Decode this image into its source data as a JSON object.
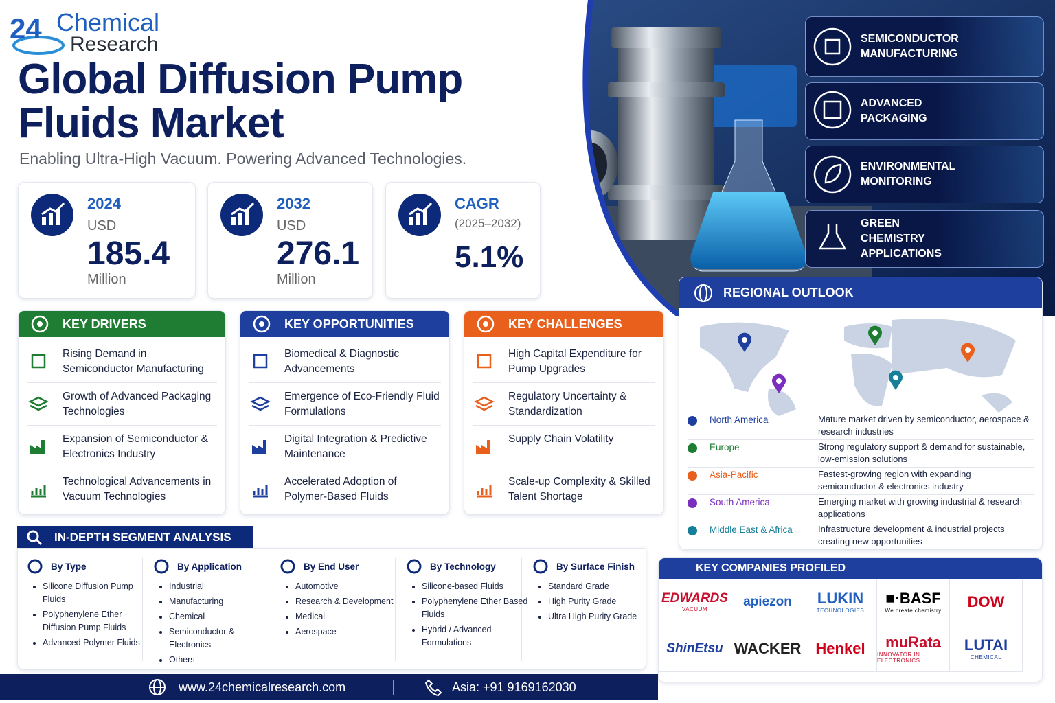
{
  "logo": {
    "number": "24",
    "name": "Chemical",
    "sub": "Research"
  },
  "header": {
    "title_line1": "Global Diffusion Pump",
    "title_line2": "Fluids Market",
    "subtitle": "Enabling Ultra-High Vacuum. Powering Advanced Technologies."
  },
  "stats": [
    {
      "label": 2024,
      "unit": "USD",
      "value": 185.4,
      "suffix": "Million"
    },
    {
      "label": 2032,
      "unit": "USD",
      "value": 276.1,
      "suffix": "Million"
    },
    {
      "label": "CAGR",
      "unit": "(2025–2032)",
      "value": "5.1%"
    }
  ],
  "applications": [
    "SEMICONDUCTOR MANUFACTURING",
    "ADVANCED PACKAGING",
    "ENVIRONMENTAL MONITORING",
    "GREEN CHEMISTRY APPLICATIONS"
  ],
  "key_drivers": {
    "title": "KEY DRIVERS",
    "items": [
      "Rising Demand in Semiconductor Manufacturing",
      "Growth of Advanced Packaging Technologies",
      "Expansion of Semiconductor & Electronics Industry",
      "Technological Advancements in Vacuum Technologies"
    ]
  },
  "key_opportunities": {
    "title": "KEY OPPORTUNITIES",
    "items": [
      "Biomedical & Diagnostic Advancements",
      "Emergence of Eco-Friendly Fluid Formulations",
      "Digital Integration & Predictive Maintenance",
      "Accelerated Adoption of Polymer-Based Fluids"
    ]
  },
  "key_challenges": {
    "title": "KEY CHALLENGES",
    "items": [
      "High Capital Expenditure for Pump Upgrades",
      "Regulatory Uncertainty & Standardization",
      "Supply Chain Volatility",
      "Scale-up Complexity & Skilled Talent Shortage"
    ]
  },
  "regional": {
    "title": "REGIONAL OUTLOOK",
    "regions": [
      {
        "name": "North America",
        "color": "#1f3f9e",
        "desc": "Mature market driven by semiconductor, aerospace & research industries"
      },
      {
        "name": "Europe",
        "color": "#1e7d32",
        "desc": "Strong regulatory support & demand for sustainable, low-emission solutions"
      },
      {
        "name": "Asia-Pacific",
        "color": "#e8601c",
        "desc": "Fastest-growing region with expanding semiconductor & electronics industry"
      },
      {
        "name": "South America",
        "color": "#7b2fbf",
        "desc": "Emerging market with growing industrial & research applications"
      },
      {
        "name": "Middle East & Africa",
        "color": "#16809a",
        "desc": "Infrastructure development & industrial projects creating new opportunities"
      }
    ]
  },
  "segments": {
    "title": "IN-DEPTH SEGMENT ANALYSIS",
    "groups": [
      {
        "title": "By Type",
        "items": [
          "Silicone Diffusion Pump Fluids",
          "Polyphenylene Ether Diffusion Pump Fluids",
          "Advanced Polymer Fluids"
        ]
      },
      {
        "title": "By Application",
        "items": [
          "Industrial",
          "Manufacturing",
          "Chemical",
          "Semiconductor & Electronics",
          "Others"
        ]
      },
      {
        "title": "By End User",
        "items": [
          "Automotive",
          "Research & Development",
          "Medical",
          "Aerospace"
        ]
      },
      {
        "title": "By Technology",
        "items": [
          "Silicone-based Fluids",
          "Polyphenylene Ether Based Fluids",
          "Hybrid / Advanced Formulations"
        ]
      },
      {
        "title": "By Surface Finish",
        "items": [
          "Standard Grade",
          "High Purity Grade",
          "Ultra High Purity Grade"
        ]
      }
    ]
  },
  "companies": {
    "title": "KEY COMPANIES PROFILED",
    "logos": [
      {
        "name": "EDWARDS",
        "tag": "VACUUM"
      },
      {
        "name": "apiezon"
      },
      {
        "name": "LUKIN",
        "tag": "TECHNOLOGIES"
      },
      {
        "name": "■·BASF",
        "tag": "We create chemistry"
      },
      {
        "name": "DOW"
      },
      {
        "name": "ShinEtsu"
      },
      {
        "name": "WACKER"
      },
      {
        "name": "Henkel"
      },
      {
        "name": "muRata",
        "tag": "INNOVATOR IN ELECTRONICS"
      },
      {
        "name": "LUTAI",
        "tag": "CHEMICAL"
      }
    ]
  },
  "footer": {
    "website": "www.24chemicalresearch.com",
    "phone": "Asia: +91 9169162030"
  }
}
